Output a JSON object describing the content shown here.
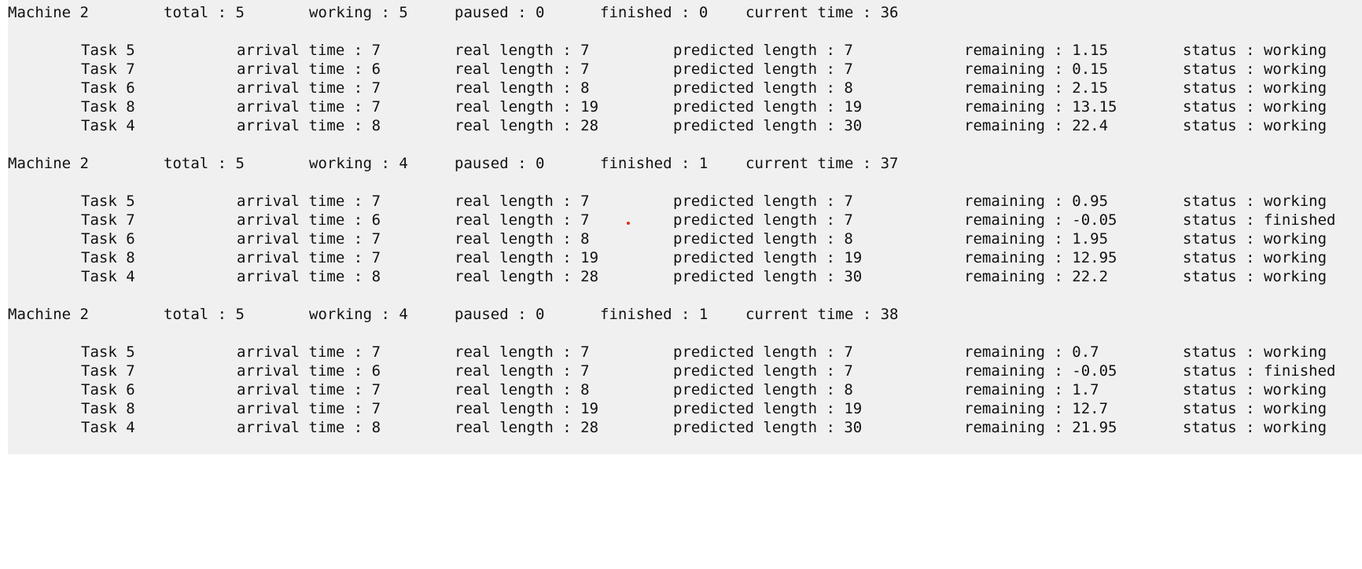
{
  "blocks": [
    {
      "header": {
        "machine": "Machine 2",
        "total": "total : 5",
        "working": "working : 5",
        "paused": "paused : 0",
        "finished": "finished : 0",
        "current_time": "current time : 36"
      },
      "tasks": [
        {
          "task": "Task 5",
          "arrival": "arrival time : 7",
          "real": "real length : 7",
          "predicted": "predicted length : 7",
          "remaining": "remaining : 1.15",
          "status": "status : working"
        },
        {
          "task": "Task 7",
          "arrival": "arrival time : 6",
          "real": "real length : 7",
          "predicted": "predicted length : 7",
          "remaining": "remaining : 0.15",
          "status": "status : working"
        },
        {
          "task": "Task 6",
          "arrival": "arrival time : 7",
          "real": "real length : 8",
          "predicted": "predicted length : 8",
          "remaining": "remaining : 2.15",
          "status": "status : working"
        },
        {
          "task": "Task 8",
          "arrival": "arrival time : 7",
          "real": "real length : 19",
          "predicted": "predicted length : 19",
          "remaining": "remaining : 13.15",
          "status": "status : working"
        },
        {
          "task": "Task 4",
          "arrival": "arrival time : 8",
          "real": "real length : 28",
          "predicted": "predicted length : 30",
          "remaining": "remaining : 22.4",
          "status": "status : working"
        }
      ]
    },
    {
      "header": {
        "machine": "Machine 2",
        "total": "total : 5",
        "working": "working : 4",
        "paused": "paused : 0",
        "finished": "finished : 1",
        "current_time": "current time : 37"
      },
      "tasks": [
        {
          "task": "Task 5",
          "arrival": "arrival time : 7",
          "real": "real length : 7",
          "predicted": "predicted length : 7",
          "remaining": "remaining : 0.95",
          "status": "status : working"
        },
        {
          "task": "Task 7",
          "arrival": "arrival time : 6",
          "real": "real length : 7",
          "predicted": "predicted length : 7",
          "remaining": "remaining : -0.05",
          "status": "status : finished"
        },
        {
          "task": "Task 6",
          "arrival": "arrival time : 7",
          "real": "real length : 8",
          "predicted": "predicted length : 8",
          "remaining": "remaining : 1.95",
          "status": "status : working"
        },
        {
          "task": "Task 8",
          "arrival": "arrival time : 7",
          "real": "real length : 19",
          "predicted": "predicted length : 19",
          "remaining": "remaining : 12.95",
          "status": "status : working"
        },
        {
          "task": "Task 4",
          "arrival": "arrival time : 8",
          "real": "real length : 28",
          "predicted": "predicted length : 30",
          "remaining": "remaining : 22.2",
          "status": "status : working"
        }
      ]
    },
    {
      "header": {
        "machine": "Machine 2",
        "total": "total : 5",
        "working": "working : 4",
        "paused": "paused : 0",
        "finished": "finished : 1",
        "current_time": "current time : 38"
      },
      "tasks": [
        {
          "task": "Task 5",
          "arrival": "arrival time : 7",
          "real": "real length : 7",
          "predicted": "predicted length : 7",
          "remaining": "remaining : 0.7",
          "status": "status : working"
        },
        {
          "task": "Task 7",
          "arrival": "arrival time : 6",
          "real": "real length : 7",
          "predicted": "predicted length : 7",
          "remaining": "remaining : -0.05",
          "status": "status : finished"
        },
        {
          "task": "Task 6",
          "arrival": "arrival time : 7",
          "real": "real length : 8",
          "predicted": "predicted length : 8",
          "remaining": "remaining : 1.7",
          "status": "status : working"
        },
        {
          "task": "Task 8",
          "arrival": "arrival time : 7",
          "real": "real length : 19",
          "predicted": "predicted length : 19",
          "remaining": "remaining : 12.7",
          "status": "status : working"
        },
        {
          "task": "Task 4",
          "arrival": "arrival time : 8",
          "real": "real length : 28",
          "predicted": "predicted length : 30",
          "remaining": "remaining : 21.95",
          "status": "status : working"
        }
      ]
    }
  ],
  "colors": {
    "background": "#f0f0f0",
    "text": "#111111",
    "cursor_dot": "#e0291f"
  }
}
